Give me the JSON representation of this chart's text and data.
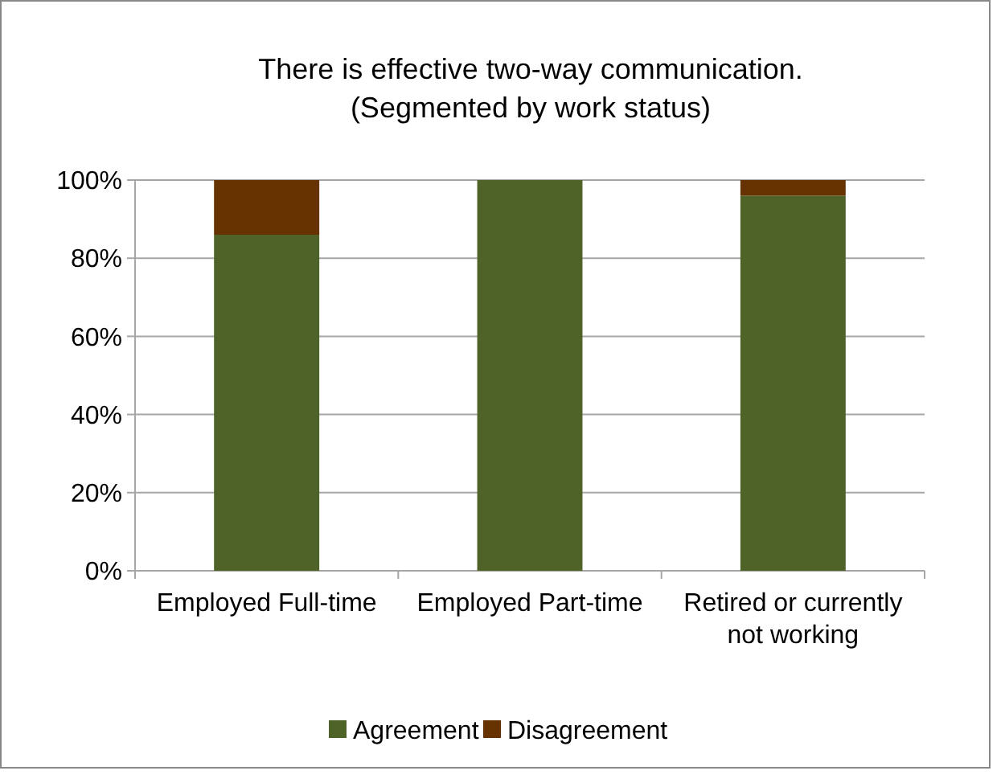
{
  "chart_data": {
    "type": "bar",
    "stacked": true,
    "title": "There is effective two-way communication.",
    "subtitle": "(Segmented by work status)",
    "categories": [
      "Employed Full-time",
      "Employed Part-time",
      "Retired or currently not working"
    ],
    "series": [
      {
        "name": "Agreement",
        "color": "#4f6228",
        "values": [
          86,
          100,
          96
        ]
      },
      {
        "name": "Disagreement",
        "color": "#663300",
        "values": [
          14,
          0,
          4
        ]
      }
    ],
    "ylim": [
      0,
      100
    ],
    "yticks": [
      {
        "value": 0,
        "label": "0%"
      },
      {
        "value": 20,
        "label": "20%"
      },
      {
        "value": 40,
        "label": "40%"
      },
      {
        "value": 60,
        "label": "60%"
      },
      {
        "value": 80,
        "label": "80%"
      },
      {
        "value": 100,
        "label": "100%"
      }
    ],
    "grid": "y",
    "legend": "bottom"
  }
}
